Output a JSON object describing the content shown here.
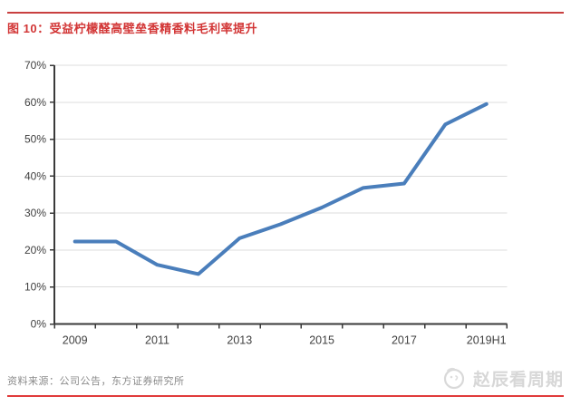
{
  "page": {
    "figure_title": "图 10：受益柠檬醛高壁垒香精香料毛利率提升",
    "source_note": "资料来源：公司公告，东方证券研究所",
    "watermark_text": "赵辰看周期",
    "accent_top_rule": "#c94040",
    "accent_bottom_rule": "#e03b3b",
    "title_color": "#d23535"
  },
  "chart_data": {
    "type": "line",
    "title": "受益柠檬醛高壁垒香精香料毛利率提升",
    "categories": [
      "2009",
      "2010",
      "2011",
      "2012",
      "2013",
      "2014",
      "2015",
      "2016",
      "2017",
      "2018",
      "2019H1"
    ],
    "values": [
      22.3,
      22.3,
      16.0,
      13.5,
      23.2,
      27.0,
      31.5,
      36.8,
      38.0,
      54.0,
      59.5
    ],
    "unit": "%",
    "xlabel": "",
    "ylabel": "",
    "ylim": [
      0,
      70
    ],
    "ytick_step": 10,
    "ytick_labels": [
      "0%",
      "10%",
      "20%",
      "30%",
      "40%",
      "50%",
      "60%",
      "70%"
    ],
    "xtick_labels_shown": [
      "2009",
      "2011",
      "2013",
      "2015",
      "2017",
      "2019H1"
    ],
    "xtick_shown_indices": [
      0,
      2,
      4,
      6,
      8,
      10
    ],
    "grid": "horizontal",
    "legend": "none",
    "line_color": "#4a7ebb",
    "gridline_color": "#dcdcdc",
    "axis_color": "#3a3a3a",
    "tick_label_color": "#404040"
  }
}
